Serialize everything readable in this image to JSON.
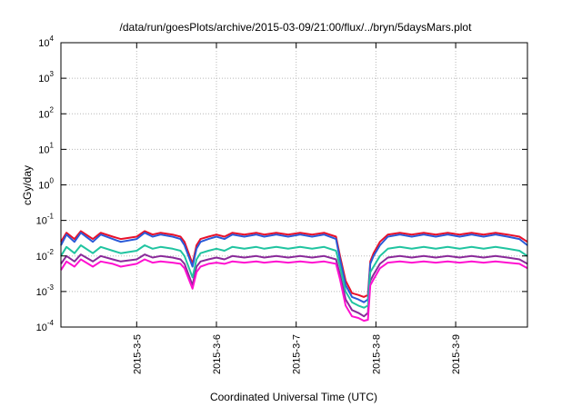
{
  "chart_data": {
    "type": "line",
    "title": "/data/run/goesPlots/archive/2015-03-09/21:00/flux/../bryn/5daysMars.plot",
    "xlabel": "Coordinated Universal Time (UTC)",
    "ylabel": "cGy/day",
    "y_scale": "log",
    "ylim": [
      0.0001,
      10000
    ],
    "xlim": [
      4.05,
      9.9
    ],
    "grid": true,
    "legend": "none",
    "y_ticks": [
      {
        "value": 0.0001,
        "base": "10",
        "exp": "-4"
      },
      {
        "value": 0.001,
        "base": "10",
        "exp": "-3"
      },
      {
        "value": 0.01,
        "base": "10",
        "exp": "-2"
      },
      {
        "value": 0.1,
        "base": "10",
        "exp": "-1"
      },
      {
        "value": 1,
        "base": "10",
        "exp": "0"
      },
      {
        "value": 10,
        "base": "10",
        "exp": "1"
      },
      {
        "value": 100,
        "base": "10",
        "exp": "2"
      },
      {
        "value": 1000,
        "base": "10",
        "exp": "3"
      },
      {
        "value": 10000,
        "base": "10",
        "exp": "4"
      }
    ],
    "x_ticks": [
      {
        "value": 5,
        "label": "2015-3-5"
      },
      {
        "value": 6,
        "label": "2015-3-6"
      },
      {
        "value": 7,
        "label": "2015-3-7"
      },
      {
        "value": 8,
        "label": "2015-3-8"
      },
      {
        "value": 9,
        "label": "2015-3-9"
      }
    ],
    "series_colors": [
      "#e8102a",
      "#2a5ad8",
      "#8a2a9a",
      "#20c4a0",
      "#ff10d0"
    ],
    "series": [
      {
        "color": "#e8102a",
        "x": [
          4.05,
          4.12,
          4.22,
          4.3,
          4.45,
          4.55,
          4.7,
          4.8,
          5.0,
          5.1,
          5.2,
          5.3,
          5.45,
          5.55,
          5.6,
          5.7,
          5.75,
          5.8,
          5.9,
          6.0,
          6.1,
          6.2,
          6.35,
          6.5,
          6.6,
          6.75,
          6.9,
          7.05,
          7.2,
          7.35,
          7.5,
          7.55,
          7.62,
          7.7,
          7.78,
          7.85,
          7.9,
          7.93,
          7.97,
          8.05,
          8.15,
          8.3,
          8.45,
          8.6,
          8.75,
          8.9,
          9.05,
          9.2,
          9.35,
          9.5,
          9.65,
          9.8,
          9.9
        ],
        "y": [
          0.025,
          0.045,
          0.03,
          0.05,
          0.03,
          0.045,
          0.035,
          0.03,
          0.035,
          0.05,
          0.04,
          0.045,
          0.04,
          0.035,
          0.025,
          0.006,
          0.02,
          0.03,
          0.035,
          0.04,
          0.035,
          0.045,
          0.04,
          0.045,
          0.04,
          0.045,
          0.04,
          0.045,
          0.04,
          0.045,
          0.035,
          0.01,
          0.002,
          0.0009,
          0.0008,
          0.0007,
          0.0008,
          0.007,
          0.012,
          0.025,
          0.04,
          0.045,
          0.04,
          0.045,
          0.04,
          0.045,
          0.04,
          0.045,
          0.04,
          0.045,
          0.04,
          0.035,
          0.025
        ]
      },
      {
        "color": "#2a5ad8",
        "x": [
          4.05,
          4.12,
          4.22,
          4.3,
          4.45,
          4.55,
          4.7,
          4.8,
          5.0,
          5.1,
          5.2,
          5.3,
          5.45,
          5.55,
          5.6,
          5.7,
          5.75,
          5.8,
          5.9,
          6.0,
          6.1,
          6.2,
          6.35,
          6.5,
          6.6,
          6.75,
          6.9,
          7.05,
          7.2,
          7.35,
          7.5,
          7.55,
          7.62,
          7.7,
          7.78,
          7.85,
          7.9,
          7.93,
          7.97,
          8.05,
          8.15,
          8.3,
          8.45,
          8.6,
          8.75,
          8.9,
          9.05,
          9.2,
          9.35,
          9.5,
          9.65,
          9.8,
          9.9
        ],
        "y": [
          0.02,
          0.04,
          0.025,
          0.045,
          0.025,
          0.04,
          0.03,
          0.025,
          0.03,
          0.045,
          0.035,
          0.04,
          0.035,
          0.03,
          0.02,
          0.005,
          0.016,
          0.025,
          0.03,
          0.035,
          0.03,
          0.04,
          0.035,
          0.04,
          0.035,
          0.04,
          0.035,
          0.04,
          0.035,
          0.04,
          0.03,
          0.008,
          0.0015,
          0.0007,
          0.0006,
          0.0005,
          0.0006,
          0.006,
          0.01,
          0.02,
          0.035,
          0.04,
          0.035,
          0.04,
          0.035,
          0.04,
          0.035,
          0.04,
          0.035,
          0.04,
          0.035,
          0.03,
          0.02
        ]
      },
      {
        "color": "#8a2a9a",
        "x": [
          4.05,
          4.12,
          4.22,
          4.3,
          4.45,
          4.55,
          4.7,
          4.8,
          5.0,
          5.1,
          5.2,
          5.3,
          5.45,
          5.55,
          5.6,
          5.7,
          5.75,
          5.8,
          5.9,
          6.0,
          6.1,
          6.2,
          6.35,
          6.5,
          6.6,
          6.75,
          6.9,
          7.05,
          7.2,
          7.35,
          7.5,
          7.55,
          7.62,
          7.7,
          7.78,
          7.85,
          7.9,
          7.93,
          7.97,
          8.05,
          8.15,
          8.3,
          8.45,
          8.6,
          8.75,
          8.9,
          9.05,
          9.2,
          9.35,
          9.5,
          9.65,
          9.8,
          9.9
        ],
        "y": [
          0.006,
          0.01,
          0.007,
          0.011,
          0.007,
          0.01,
          0.008,
          0.007,
          0.008,
          0.011,
          0.009,
          0.01,
          0.009,
          0.008,
          0.006,
          0.0015,
          0.005,
          0.007,
          0.008,
          0.009,
          0.008,
          0.01,
          0.009,
          0.01,
          0.009,
          0.01,
          0.009,
          0.01,
          0.009,
          0.01,
          0.008,
          0.003,
          0.0006,
          0.0003,
          0.00025,
          0.0002,
          0.00025,
          0.002,
          0.003,
          0.006,
          0.009,
          0.01,
          0.009,
          0.01,
          0.009,
          0.01,
          0.009,
          0.01,
          0.009,
          0.01,
          0.009,
          0.008,
          0.006
        ]
      },
      {
        "color": "#20c4a0",
        "x": [
          4.05,
          4.12,
          4.22,
          4.3,
          4.45,
          4.55,
          4.7,
          4.8,
          5.0,
          5.1,
          5.2,
          5.3,
          5.45,
          5.55,
          5.6,
          5.7,
          5.75,
          5.8,
          5.9,
          6.0,
          6.1,
          6.2,
          6.35,
          6.5,
          6.6,
          6.75,
          6.9,
          7.05,
          7.2,
          7.35,
          7.5,
          7.55,
          7.62,
          7.7,
          7.78,
          7.85,
          7.9,
          7.93,
          7.97,
          8.05,
          8.15,
          8.3,
          8.45,
          8.6,
          8.75,
          8.9,
          9.05,
          9.2,
          9.35,
          9.5,
          9.65,
          9.8,
          9.9
        ],
        "y": [
          0.01,
          0.018,
          0.012,
          0.02,
          0.012,
          0.018,
          0.014,
          0.012,
          0.014,
          0.02,
          0.016,
          0.018,
          0.016,
          0.014,
          0.01,
          0.0025,
          0.008,
          0.012,
          0.014,
          0.016,
          0.014,
          0.018,
          0.016,
          0.018,
          0.016,
          0.018,
          0.016,
          0.018,
          0.016,
          0.018,
          0.014,
          0.005,
          0.001,
          0.0005,
          0.0004,
          0.00035,
          0.0004,
          0.0035,
          0.005,
          0.01,
          0.016,
          0.018,
          0.016,
          0.018,
          0.016,
          0.018,
          0.016,
          0.018,
          0.016,
          0.018,
          0.016,
          0.014,
          0.01
        ]
      },
      {
        "color": "#ff10d0",
        "x": [
          4.05,
          4.12,
          4.22,
          4.3,
          4.45,
          4.55,
          4.7,
          4.8,
          5.0,
          5.1,
          5.2,
          5.3,
          5.45,
          5.55,
          5.6,
          5.7,
          5.75,
          5.8,
          5.9,
          6.0,
          6.1,
          6.2,
          6.35,
          6.5,
          6.6,
          6.75,
          6.9,
          7.05,
          7.2,
          7.35,
          7.5,
          7.55,
          7.62,
          7.7,
          7.78,
          7.85,
          7.9,
          7.93,
          7.97,
          8.05,
          8.15,
          8.3,
          8.45,
          8.6,
          8.75,
          8.9,
          9.05,
          9.2,
          9.35,
          9.5,
          9.65,
          9.8,
          9.9
        ],
        "y": [
          0.004,
          0.007,
          0.005,
          0.008,
          0.005,
          0.007,
          0.006,
          0.005,
          0.006,
          0.008,
          0.0065,
          0.007,
          0.0065,
          0.006,
          0.0045,
          0.0012,
          0.0035,
          0.005,
          0.006,
          0.0065,
          0.006,
          0.007,
          0.0065,
          0.007,
          0.0065,
          0.007,
          0.0065,
          0.007,
          0.0065,
          0.007,
          0.006,
          0.0022,
          0.0004,
          0.0002,
          0.00018,
          0.00015,
          0.00016,
          0.0015,
          0.0022,
          0.0045,
          0.0065,
          0.007,
          0.0065,
          0.007,
          0.0065,
          0.007,
          0.0065,
          0.007,
          0.0065,
          0.007,
          0.0065,
          0.006,
          0.0045
        ]
      }
    ]
  }
}
